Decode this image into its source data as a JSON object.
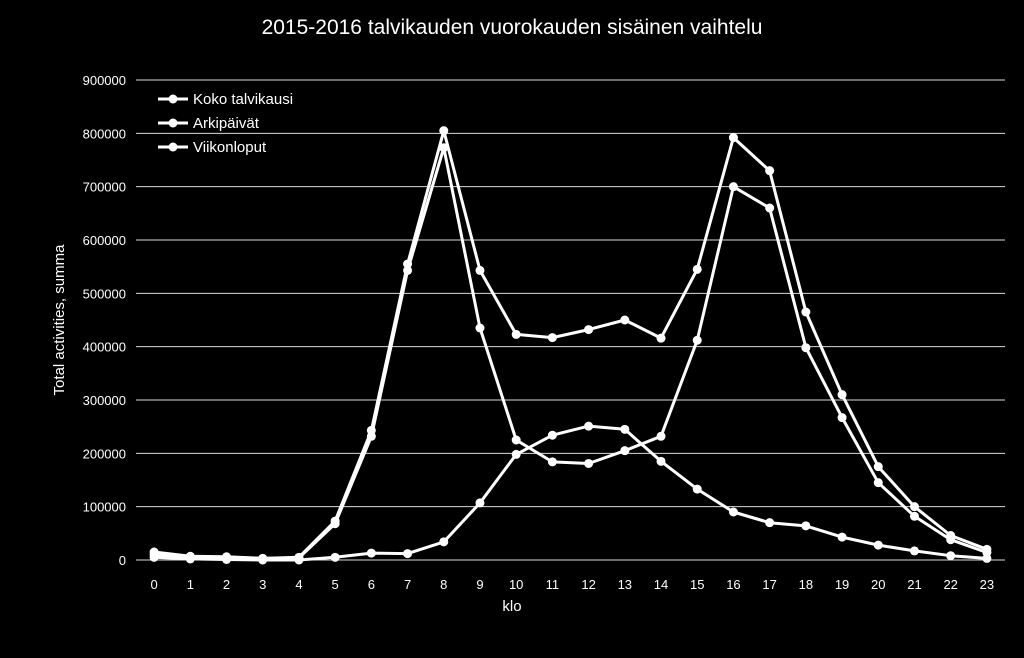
{
  "chart_data": {
    "type": "line",
    "title": "2015-2016 talvikauden vuorokauden sisäinen vaihtelu",
    "xlabel": "klo",
    "ylabel": "Total activities, summa",
    "ylim": [
      0,
      900000
    ],
    "yticks": [
      0,
      100000,
      200000,
      300000,
      400000,
      500000,
      600000,
      700000,
      800000,
      900000
    ],
    "grid": true,
    "legend_position": "top-left",
    "x": [
      0,
      1,
      2,
      3,
      4,
      5,
      6,
      7,
      8,
      9,
      10,
      11,
      12,
      13,
      14,
      15,
      16,
      17,
      18,
      19,
      20,
      21,
      22,
      23
    ],
    "series": [
      {
        "name": "Koko talvikausi",
        "values": [
          15000,
          7000,
          6000,
          3000,
          5000,
          73000,
          243000,
          555000,
          805000,
          543000,
          423000,
          417000,
          432000,
          450000,
          416000,
          545000,
          792000,
          730000,
          465000,
          310000,
          175000,
          100000,
          46000,
          20000
        ]
      },
      {
        "name": "Arkipäivät",
        "values": [
          10000,
          5000,
          5000,
          3000,
          4000,
          68000,
          232000,
          543000,
          773000,
          435000,
          225000,
          184000,
          181000,
          205000,
          232000,
          412000,
          700000,
          660000,
          398000,
          267000,
          145000,
          82000,
          38000,
          14000
        ]
      },
      {
        "name": "Viikonloput",
        "values": [
          5000,
          2000,
          1000,
          0,
          0,
          5000,
          13000,
          12000,
          34000,
          107000,
          198000,
          234000,
          251000,
          245000,
          185000,
          133000,
          90000,
          70000,
          64000,
          43000,
          28000,
          17000,
          8000,
          3000
        ]
      }
    ],
    "colors": {
      "background": "#000000",
      "line": "#ffffff",
      "grid": "#d9d9d9",
      "text": "#ffffff"
    }
  }
}
